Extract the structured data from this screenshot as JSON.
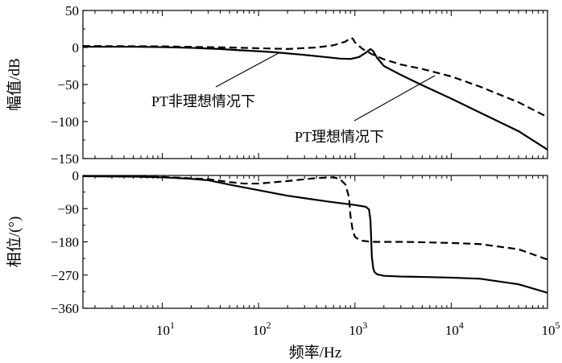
{
  "chart_data": [
    {
      "type": "line",
      "x_scale": "log",
      "xlim": [
        1.5,
        100000
      ],
      "ylim": [
        -150,
        50
      ],
      "ylabel": "幅值/dB",
      "yticks": [
        "50",
        "0",
        "−50",
        "−100",
        "−150"
      ],
      "ytick_values": [
        50,
        0,
        -50,
        -100,
        -150
      ],
      "annotations": [
        "PT非理想情况下",
        "PT理想情况下"
      ],
      "series": [
        {
          "style": "solid",
          "x": [
            1.5,
            5,
            10,
            20,
            40,
            60,
            100,
            150,
            200,
            300,
            500,
            700,
            900,
            1100,
            1300,
            1450,
            1550,
            1700,
            2000,
            3000,
            5000,
            10000,
            20000,
            50000,
            100000
          ],
          "y": [
            1,
            1,
            0.5,
            -0.5,
            -2,
            -3.5,
            -5,
            -6.5,
            -8,
            -10,
            -13,
            -15,
            -15.5,
            -13,
            -7,
            -2,
            -5,
            -14,
            -25,
            -37,
            -51,
            -69,
            -88,
            -113,
            -138
          ]
        },
        {
          "style": "dashed",
          "x": [
            1.5,
            10,
            50,
            100,
            200,
            400,
            600,
            800,
            900,
            950,
            1000,
            1200,
            1500,
            2000,
            3000,
            5000,
            10000,
            20000,
            50000,
            100000
          ],
          "y": [
            2,
            1.5,
            0,
            -1,
            -2,
            0,
            3,
            8,
            13,
            12,
            7,
            -2,
            -9,
            -16,
            -23,
            -29,
            -39,
            -53,
            -74,
            -94
          ]
        }
      ]
    },
    {
      "type": "line",
      "x_scale": "log",
      "xlim": [
        1.5,
        100000
      ],
      "ylim": [
        -360,
        0
      ],
      "xlabel": "频率/Hz",
      "ylabel": "相位/(°)",
      "yticks": [
        "0",
        "−90",
        "−180",
        "−270",
        "−360"
      ],
      "ytick_values": [
        0,
        -90,
        -180,
        -270,
        -360
      ],
      "xticks": [
        {
          "base": "10",
          "exp": "1"
        },
        {
          "base": "10",
          "exp": "2"
        },
        {
          "base": "10",
          "exp": "3"
        },
        {
          "base": "10",
          "exp": "4"
        },
        {
          "base": "10",
          "exp": "5"
        }
      ],
      "xtick_values": [
        10,
        100,
        1000,
        10000,
        100000
      ],
      "series": [
        {
          "style": "solid",
          "x": [
            1.5,
            5,
            10,
            20,
            30,
            50,
            100,
            200,
            500,
            1000,
            1300,
            1400,
            1450,
            1500,
            1550,
            1600,
            1700,
            2000,
            3000,
            5000,
            10000,
            20000,
            50000,
            100000
          ],
          "y": [
            -2,
            -3,
            -5,
            -9,
            -13,
            -25,
            -40,
            -55,
            -70,
            -80,
            -85,
            -92,
            -120,
            -220,
            -252,
            -262,
            -268,
            -272,
            -274,
            -275,
            -277,
            -280,
            -295,
            -318
          ]
        },
        {
          "style": "dashed",
          "x": [
            1.5,
            10,
            30,
            50,
            70,
            100,
            200,
            400,
            600,
            700,
            800,
            870,
            900,
            950,
            1000,
            1100,
            1200,
            1400,
            1600,
            2000,
            3000,
            5000,
            10000,
            20000,
            50000,
            100000
          ],
          "y": [
            -2,
            -4,
            -10,
            -18,
            -22,
            -22,
            -15,
            -7,
            -5,
            -10,
            -25,
            -60,
            -110,
            -150,
            -166,
            -174,
            -177,
            -179,
            -180,
            -180,
            -180,
            -181,
            -183,
            -186,
            -200,
            -228
          ]
        }
      ]
    }
  ]
}
